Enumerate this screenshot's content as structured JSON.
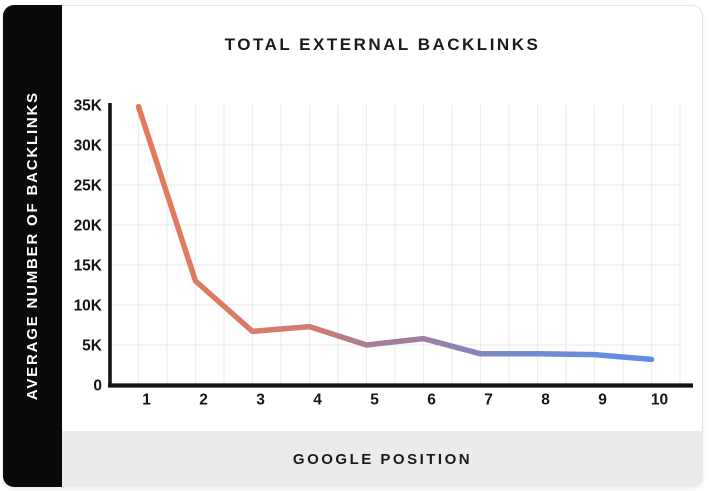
{
  "chart_data": {
    "type": "line",
    "title": "TOTAL EXTERNAL BACKLINKS",
    "xlabel": "GOOGLE POSITION",
    "ylabel": "AVERAGE NUMBER OF BACKLINKS",
    "x": [
      1,
      2,
      3,
      4,
      5,
      6,
      7,
      8,
      9,
      10
    ],
    "x_tick_labels": [
      "1",
      "2",
      "3",
      "4",
      "5",
      "6",
      "7",
      "8",
      "9",
      "10"
    ],
    "values": [
      34800,
      13000,
      6700,
      7300,
      5000,
      5800,
      3900,
      3900,
      3800,
      3200
    ],
    "ylim": [
      0,
      35000
    ],
    "ytick_values": [
      0,
      5000,
      10000,
      15000,
      20000,
      25000,
      30000,
      35000
    ],
    "ytick_labels": [
      "0",
      "5K",
      "10K",
      "15K",
      "20K",
      "25K",
      "30K",
      "35K"
    ],
    "grid": true,
    "legend": false,
    "line_gradient": {
      "start": "#E6795A",
      "mid": "#9D7F9E",
      "end": "#5E8DE9"
    },
    "colors": {
      "axis": "#141414",
      "grid": "#ededed",
      "tick_text": "#161616",
      "panel": "#0a0a0a",
      "footer_band": "#ebebeb"
    }
  }
}
